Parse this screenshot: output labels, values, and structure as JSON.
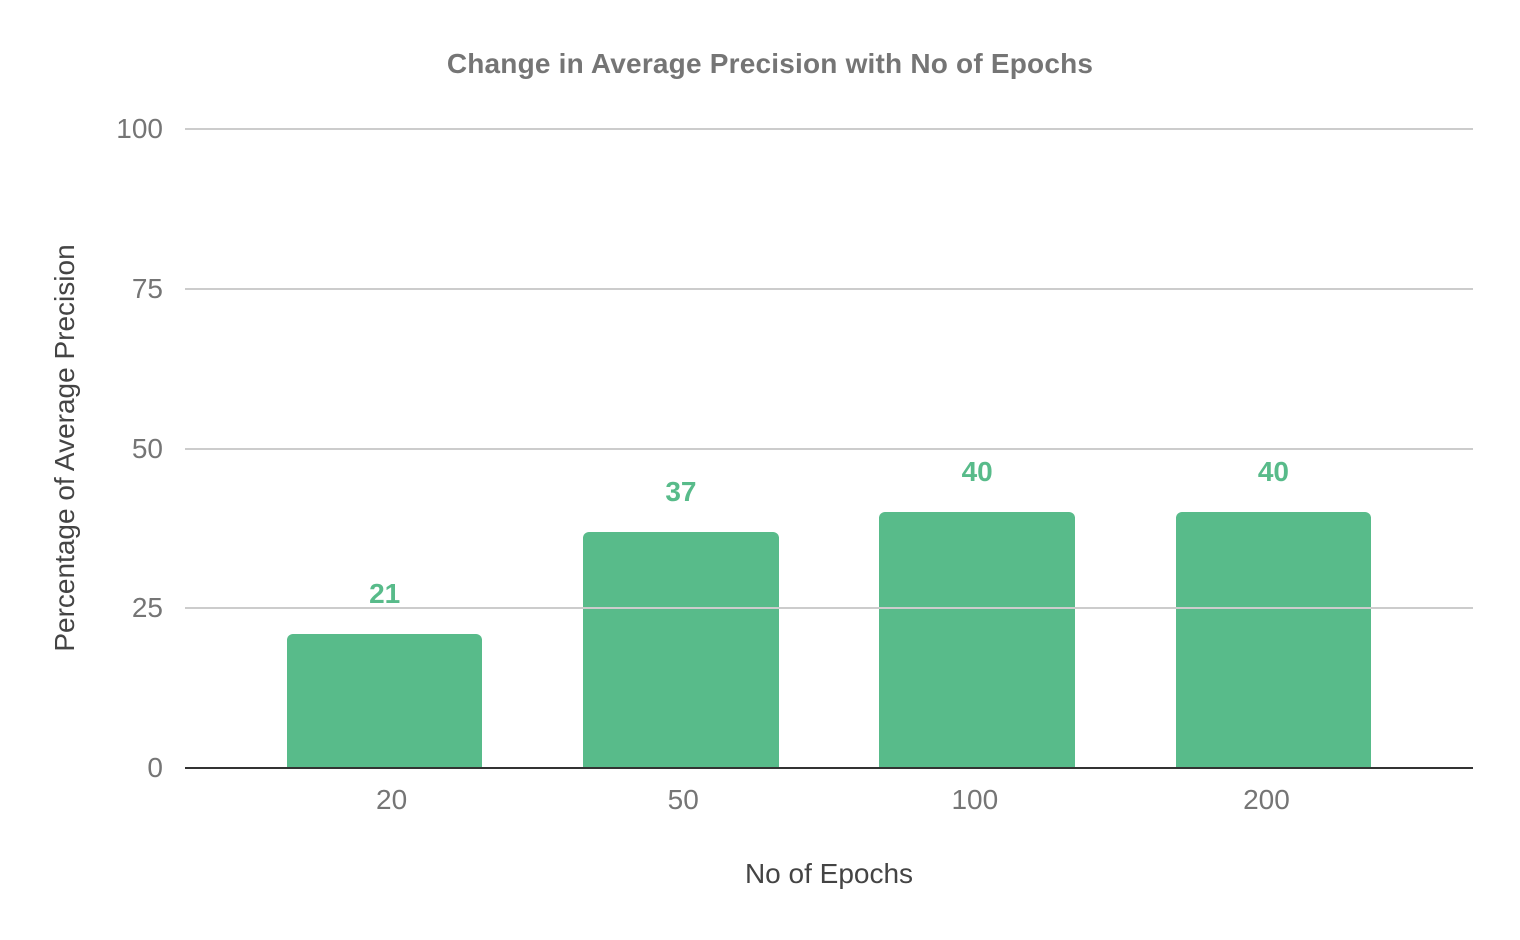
{
  "chart": {
    "title": "Change in Average Precision with No of Epochs",
    "x_axis_title": "No of Epochs",
    "y_axis_title": "Percentage of Average Precision"
  },
  "chart_data": {
    "type": "bar",
    "title": "Change in Average Precision with No of Epochs",
    "categories": [
      "20",
      "50",
      "100",
      "200"
    ],
    "values": [
      21,
      37,
      40,
      40
    ],
    "annotations": [
      "21",
      "37",
      "40",
      "40"
    ],
    "xlabel": "No of Epochs",
    "ylabel": "Percentage of Average Precision",
    "ylim": [
      0,
      100
    ],
    "yticks": [
      0,
      25,
      50,
      75,
      100
    ],
    "grid": true,
    "legend": "none",
    "colors": {
      "bar": "#58bb8a",
      "annotation": "#58bb8a",
      "gridline": "#cccccc",
      "baseline": "#333333",
      "tick_label": "#757575",
      "title": "#757575",
      "axis_title": "#444444",
      "background": "#ffffff"
    }
  }
}
